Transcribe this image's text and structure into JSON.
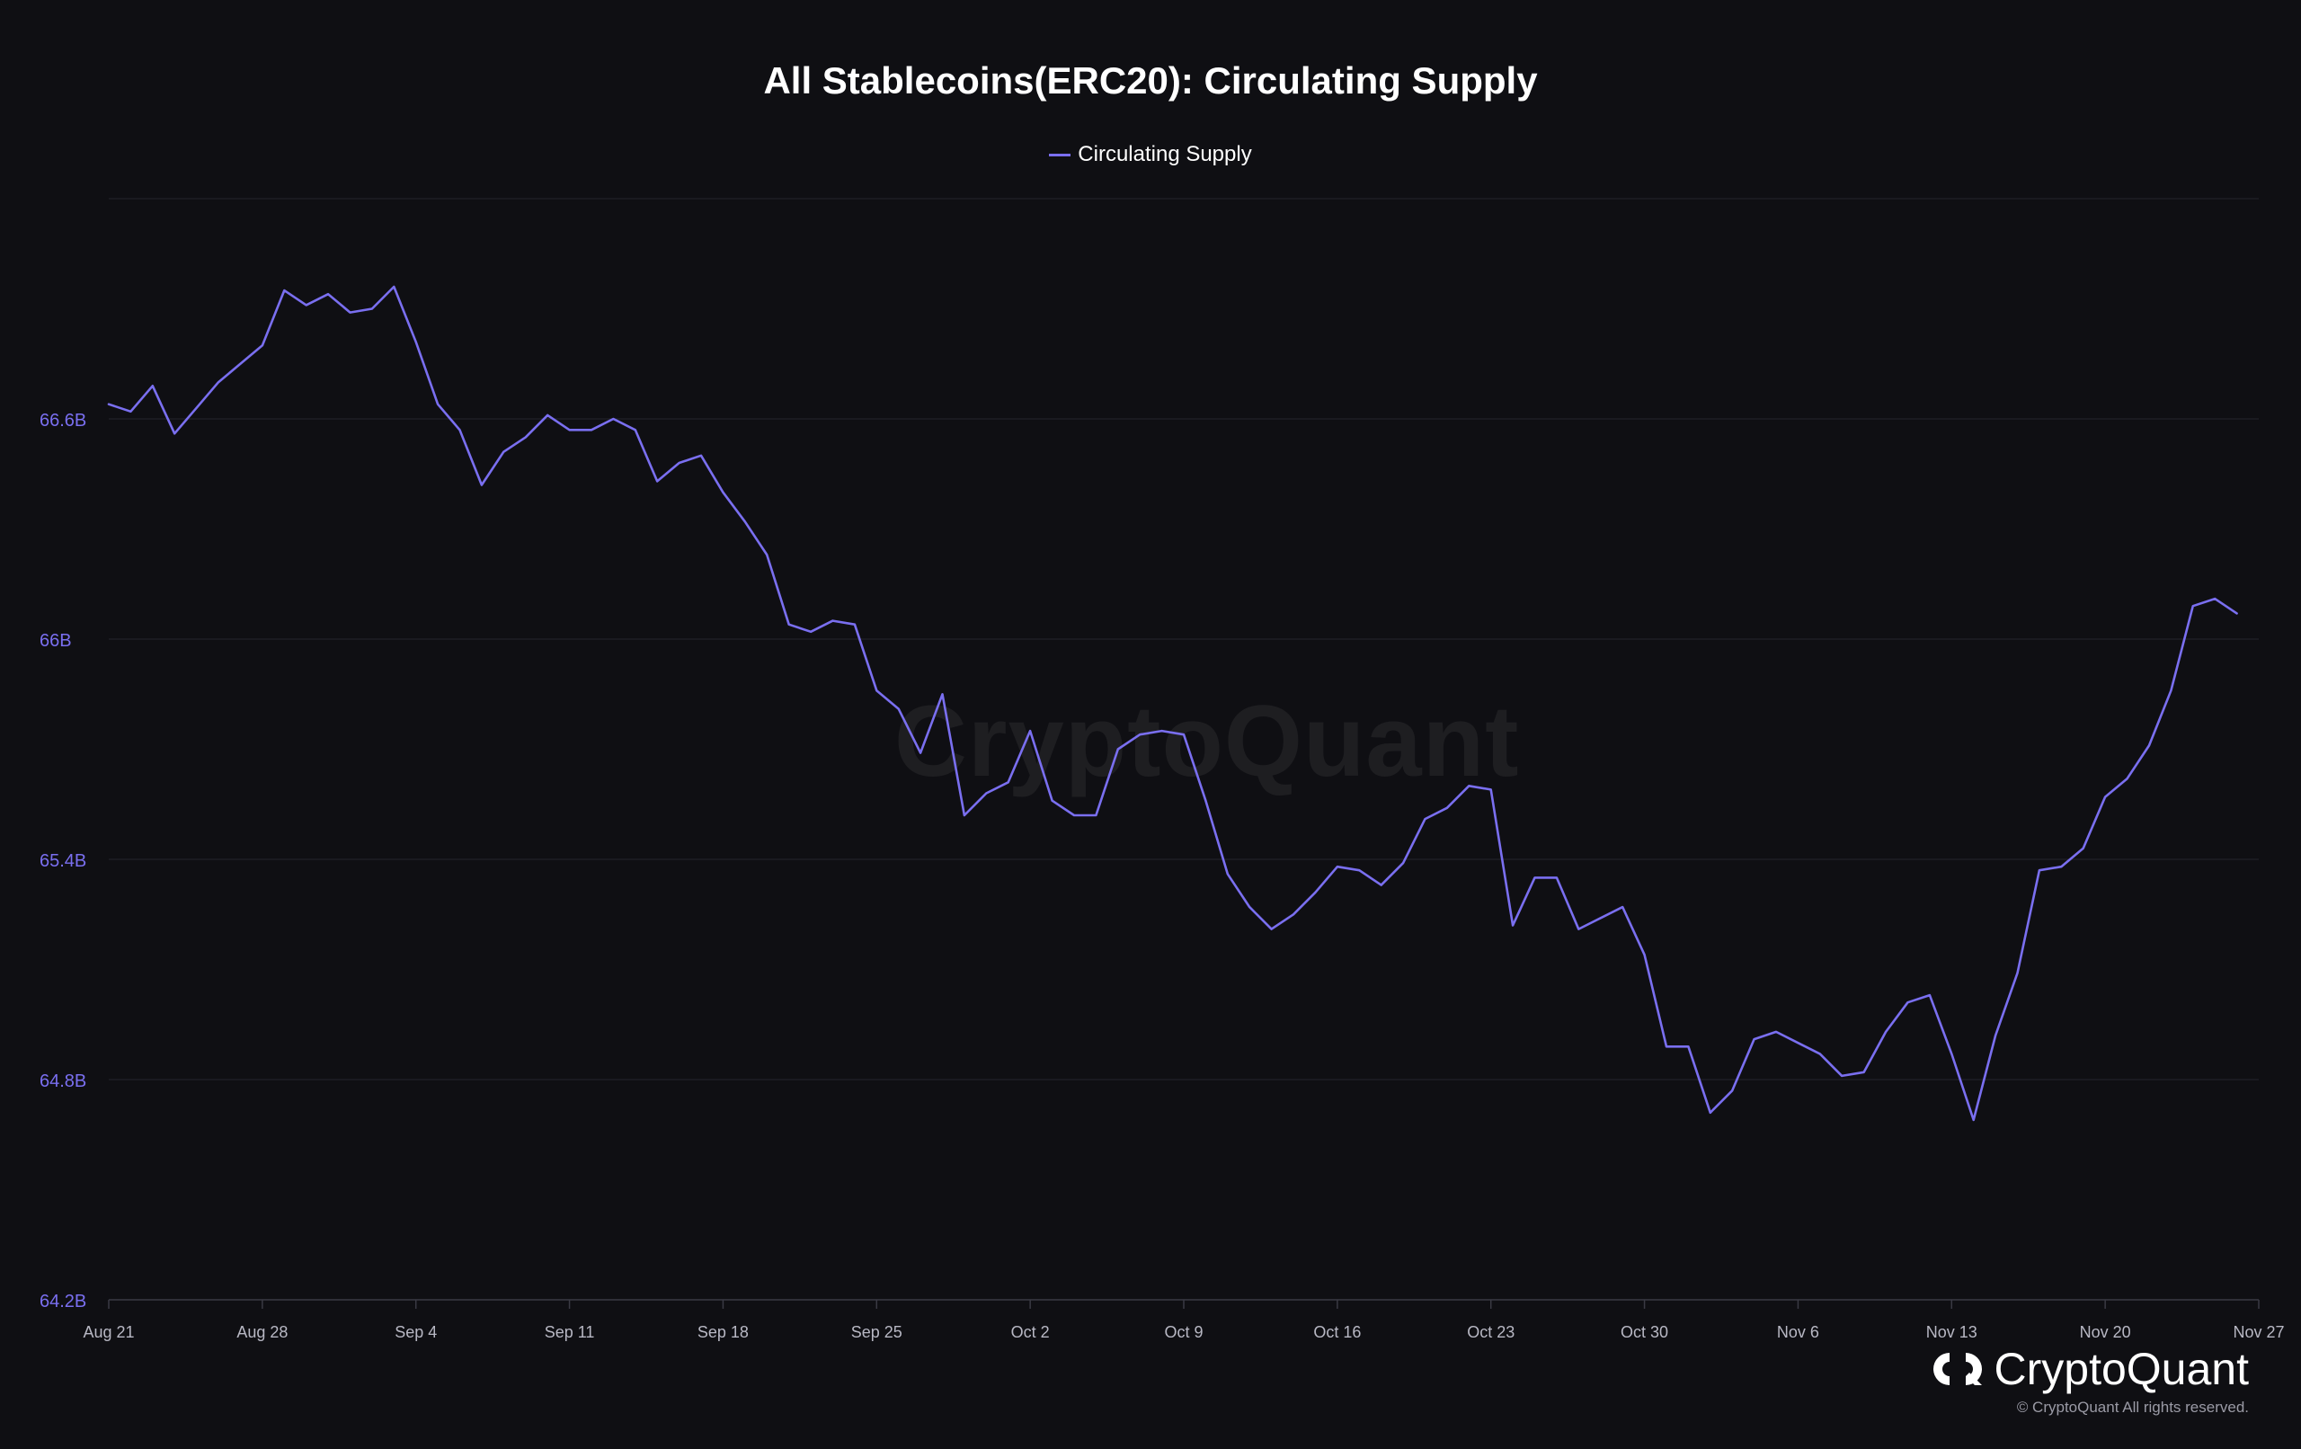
{
  "colors": {
    "background": "#0f0f13",
    "series": "#7a6ff0",
    "grid": "#24242c",
    "y_tick": "#7a6ff0",
    "x_tick": "#b8b8c4"
  },
  "brand": {
    "name": "CryptoQuant",
    "copyright": "© CryptoQuant All rights reserved.",
    "logo_icon": "cryptoquant-logo-icon"
  },
  "watermark": "CryptoQuant",
  "chart_data": {
    "type": "line",
    "title": "All Stablecoins(ERC20): Circulating Supply",
    "legend_position": "top-center",
    "grid": true,
    "ylim": [
      64.2,
      67.2
    ],
    "y_ticks": [
      {
        "value": 64.2,
        "label": "64.2B"
      },
      {
        "value": 64.8,
        "label": "64.8B"
      },
      {
        "value": 65.4,
        "label": "65.4B"
      },
      {
        "value": 66.0,
        "label": "66B"
      },
      {
        "value": 66.6,
        "label": "66.6B"
      }
    ],
    "x_ticks": [
      "Aug 21",
      "Aug 28",
      "Sep 4",
      "Sep 11",
      "Sep 18",
      "Sep 25",
      "Oct 2",
      "Oct 9",
      "Oct 16",
      "Oct 23",
      "Oct 30",
      "Nov 6",
      "Nov 13",
      "Nov 20",
      "Nov 27"
    ],
    "series": [
      {
        "name": "Circulating Supply",
        "x_start": "Aug 21",
        "step_days": 1,
        "values": [
          66.64,
          66.62,
          66.69,
          66.56,
          66.63,
          66.7,
          66.75,
          66.8,
          66.95,
          66.91,
          66.94,
          66.89,
          66.9,
          66.96,
          66.81,
          66.64,
          66.57,
          66.42,
          66.51,
          66.55,
          66.61,
          66.57,
          66.57,
          66.6,
          66.57,
          66.43,
          66.48,
          66.5,
          66.4,
          66.32,
          66.23,
          66.04,
          66.02,
          66.05,
          66.04,
          65.86,
          65.81,
          65.69,
          65.85,
          65.52,
          65.58,
          65.61,
          65.75,
          65.56,
          65.52,
          65.52,
          65.7,
          65.74,
          65.75,
          65.74,
          65.56,
          65.36,
          65.27,
          65.21,
          65.25,
          65.31,
          65.38,
          65.37,
          65.33,
          65.39,
          65.51,
          65.54,
          65.6,
          65.59,
          65.22,
          65.35,
          65.35,
          65.21,
          65.24,
          65.27,
          65.14,
          64.89,
          64.89,
          64.71,
          64.77,
          64.91,
          64.93,
          64.9,
          64.87,
          64.81,
          64.82,
          64.93,
          65.01,
          65.03,
          64.87,
          64.69,
          64.92,
          65.09,
          65.37,
          65.38,
          65.43,
          65.57,
          65.62,
          65.71,
          65.86,
          66.09,
          66.11,
          66.07
        ]
      }
    ]
  }
}
